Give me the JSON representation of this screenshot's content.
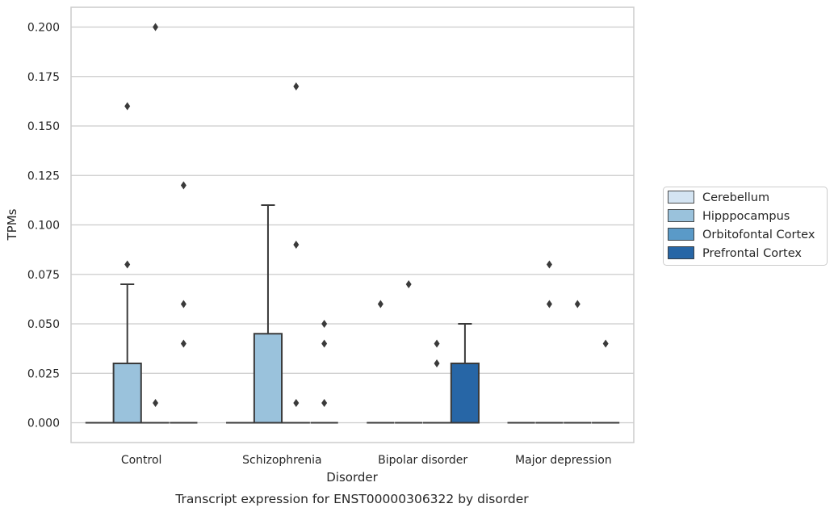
{
  "chart_data": {
    "type": "box",
    "caption": "Transcript expression for ENST00000306322 by disorder",
    "xlabel": "Disorder",
    "ylabel": "TPMs",
    "categories": [
      "Control",
      "Schizophrenia",
      "Bipolar disorder",
      "Major depression"
    ],
    "ylim": [
      -0.01,
      0.21
    ],
    "yticks": [
      "0.000",
      "0.025",
      "0.050",
      "0.075",
      "0.100",
      "0.125",
      "0.150",
      "0.175",
      "0.200"
    ],
    "grid": true,
    "legend_position": "right",
    "series": [
      {
        "name": "Cerebellum",
        "color": "#d4e4f2",
        "boxes": [
          {
            "category": "Control",
            "q1": 0,
            "median": 0,
            "q3": 0,
            "whisker_low": 0,
            "whisker_high": 0,
            "outliers": []
          },
          {
            "category": "Schizophrenia",
            "q1": 0,
            "median": 0,
            "q3": 0,
            "whisker_low": 0,
            "whisker_high": 0,
            "outliers": []
          },
          {
            "category": "Bipolar disorder",
            "q1": 0,
            "median": 0,
            "q3": 0,
            "whisker_low": 0,
            "whisker_high": 0,
            "outliers": [
              0.06
            ]
          },
          {
            "category": "Major depression",
            "q1": 0,
            "median": 0,
            "q3": 0,
            "whisker_low": 0,
            "whisker_high": 0,
            "outliers": []
          }
        ]
      },
      {
        "name": "Hipppocampus",
        "color": "#9ac2dc",
        "boxes": [
          {
            "category": "Control",
            "q1": 0,
            "median": 0,
            "q3": 0.03,
            "whisker_low": 0,
            "whisker_high": 0.07,
            "outliers": [
              0.08,
              0.16
            ]
          },
          {
            "category": "Schizophrenia",
            "q1": 0,
            "median": 0,
            "q3": 0.045,
            "whisker_low": 0,
            "whisker_high": 0.11,
            "outliers": []
          },
          {
            "category": "Bipolar disorder",
            "q1": 0,
            "median": 0,
            "q3": 0,
            "whisker_low": 0,
            "whisker_high": 0,
            "outliers": [
              0.07
            ]
          },
          {
            "category": "Major depression",
            "q1": 0,
            "median": 0,
            "q3": 0,
            "whisker_low": 0,
            "whisker_high": 0,
            "outliers": [
              0.08,
              0.06
            ]
          }
        ]
      },
      {
        "name": "Orbitofontal Cortex",
        "color": "#5a9ac8",
        "boxes": [
          {
            "category": "Control",
            "q1": 0,
            "median": 0,
            "q3": 0,
            "whisker_low": 0,
            "whisker_high": 0,
            "outliers": [
              0.2,
              0.01
            ]
          },
          {
            "category": "Schizophrenia",
            "q1": 0,
            "median": 0,
            "q3": 0,
            "whisker_low": 0,
            "whisker_high": 0,
            "outliers": [
              0.17,
              0.09,
              0.01
            ]
          },
          {
            "category": "Bipolar disorder",
            "q1": 0,
            "median": 0,
            "q3": 0,
            "whisker_low": 0,
            "whisker_high": 0,
            "outliers": [
              0.04,
              0.03
            ]
          },
          {
            "category": "Major depression",
            "q1": 0,
            "median": 0,
            "q3": 0,
            "whisker_low": 0,
            "whisker_high": 0,
            "outliers": [
              0.06
            ]
          }
        ]
      },
      {
        "name": "Prefrontal Cortex",
        "color": "#2766a6",
        "boxes": [
          {
            "category": "Control",
            "q1": 0,
            "median": 0,
            "q3": 0,
            "whisker_low": 0,
            "whisker_high": 0,
            "outliers": [
              0.12,
              0.06,
              0.04
            ]
          },
          {
            "category": "Schizophrenia",
            "q1": 0,
            "median": 0,
            "q3": 0,
            "whisker_low": 0,
            "whisker_high": 0,
            "outliers": [
              0.05,
              0.04,
              0.01
            ]
          },
          {
            "category": "Bipolar disorder",
            "q1": 0,
            "median": 0,
            "q3": 0.03,
            "whisker_low": 0,
            "whisker_high": 0.05,
            "outliers": []
          },
          {
            "category": "Major depression",
            "q1": 0,
            "median": 0,
            "q3": 0,
            "whisker_low": 0,
            "whisker_high": 0,
            "outliers": [
              0.04
            ]
          }
        ]
      }
    ]
  }
}
